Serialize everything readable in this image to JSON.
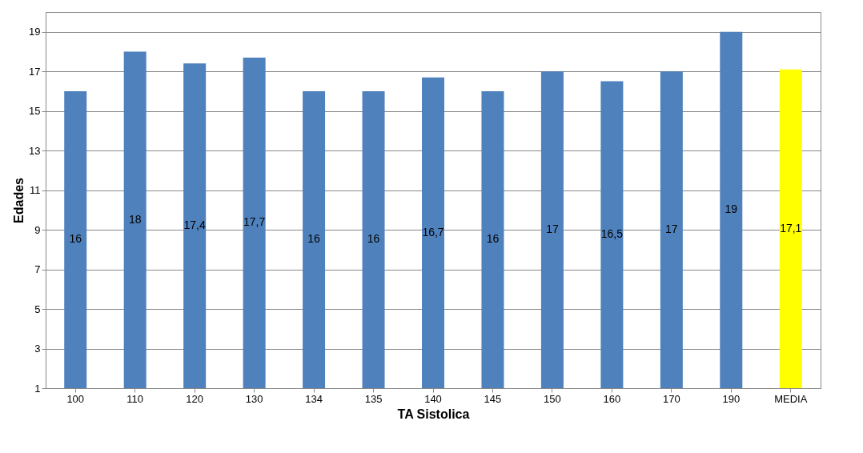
{
  "chart_data": {
    "type": "bar",
    "xlabel": "TA Sistolica",
    "ylabel": "Edades",
    "categories": [
      "100",
      "110",
      "120",
      "130",
      "134",
      "135",
      "140",
      "145",
      "150",
      "160",
      "170",
      "190",
      "MEDIA"
    ],
    "values": [
      16,
      18,
      17.4,
      17.7,
      16,
      16,
      16.7,
      16,
      17,
      16.5,
      17,
      19,
      17.1
    ],
    "value_labels": [
      "16",
      "18",
      "17,4",
      "17,7",
      "16",
      "16",
      "16,7",
      "16",
      "17",
      "16,5",
      "17",
      "19",
      "17,1"
    ],
    "colors": [
      "#4f81bd",
      "#4f81bd",
      "#4f81bd",
      "#4f81bd",
      "#4f81bd",
      "#4f81bd",
      "#4f81bd",
      "#4f81bd",
      "#4f81bd",
      "#4f81bd",
      "#4f81bd",
      "#4f81bd",
      "#ffff00"
    ],
    "ylim": [
      1,
      20
    ],
    "yticks": [
      1,
      3,
      5,
      7,
      9,
      11,
      13,
      15,
      17,
      19
    ],
    "grid": "y"
  }
}
